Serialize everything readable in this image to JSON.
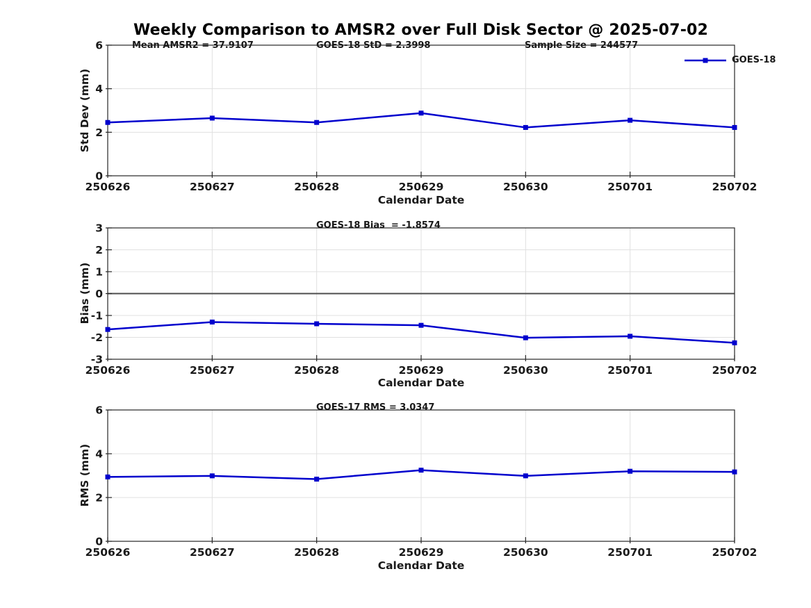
{
  "title": "Weekly Comparison to AMSR2 over Full Disk Sector @ 2025-07-02",
  "colors": {
    "series_blue": "#0000cd",
    "grid": "#e0e0e0",
    "axis": "#262626",
    "text": "#1a1a1a",
    "zero_line": "#4d4d4d"
  },
  "chart_data": [
    {
      "type": "line",
      "x": [
        "250626",
        "250627",
        "250628",
        "250629",
        "250630",
        "250701",
        "250702"
      ],
      "xlabel": "Calendar Date",
      "ylabel": "Std Dev (mm)",
      "ylim": [
        0,
        6
      ],
      "yticks": [
        0,
        2,
        4,
        6
      ],
      "grid": true,
      "legend_position": "top-right",
      "annotations": [
        "Mean AMSR2 = 37.9107",
        "GOES-18 StD = 2.3998",
        "Sample Size = 244577"
      ],
      "series": [
        {
          "name": "GOES-18",
          "color": "#0000cd",
          "marker": "square",
          "values": [
            2.45,
            2.65,
            2.45,
            2.88,
            2.22,
            2.55,
            2.22
          ]
        }
      ]
    },
    {
      "type": "line",
      "x": [
        "250626",
        "250627",
        "250628",
        "250629",
        "250630",
        "250701",
        "250702"
      ],
      "xlabel": "Calendar Date",
      "ylabel": "Bias (mm)",
      "ylim": [
        -3,
        3
      ],
      "yticks": [
        -3,
        -2,
        -1,
        0,
        1,
        2,
        3
      ],
      "grid": true,
      "zero_line": true,
      "annotations": [
        "GOES-18 Bias  = -1.8574"
      ],
      "series": [
        {
          "name": "GOES-18",
          "color": "#0000cd",
          "marker": "square",
          "values": [
            -1.64,
            -1.3,
            -1.38,
            -1.45,
            -2.02,
            -1.95,
            -2.25
          ]
        }
      ]
    },
    {
      "type": "line",
      "x": [
        "250626",
        "250627",
        "250628",
        "250629",
        "250630",
        "250701",
        "250702"
      ],
      "xlabel": "Calendar Date",
      "ylabel": "RMS (mm)",
      "ylim": [
        0,
        6
      ],
      "yticks": [
        0,
        2,
        4,
        6
      ],
      "grid": true,
      "annotations": [
        "GOES-17 RMS = 3.0347"
      ],
      "series": [
        {
          "name": "GOES-18",
          "color": "#0000cd",
          "marker": "square",
          "values": [
            2.94,
            2.99,
            2.84,
            3.25,
            2.99,
            3.2,
            3.17
          ]
        }
      ]
    }
  ]
}
